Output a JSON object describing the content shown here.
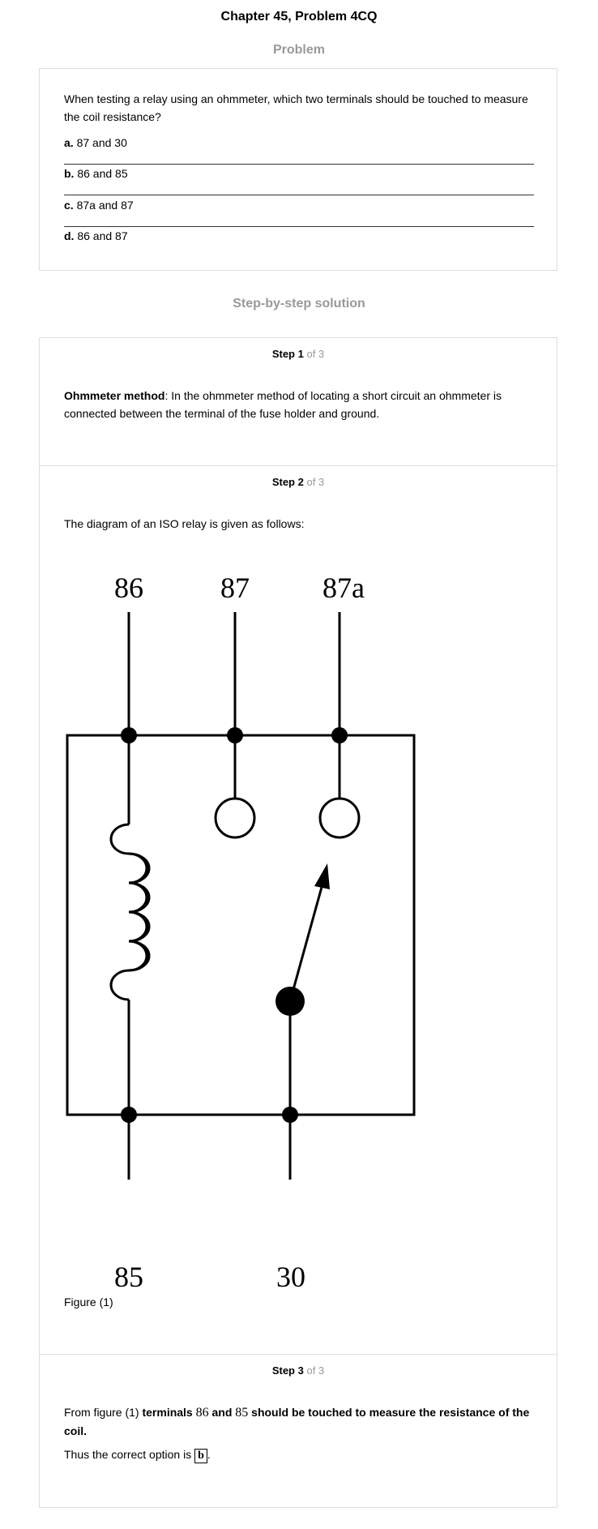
{
  "header": {
    "title": "Chapter 45, Problem 4CQ"
  },
  "problem": {
    "heading": "Problem",
    "question": "When testing a relay using an ohmmeter, which two terminals should be touched to measure the coil resistance?",
    "options": [
      {
        "letter": "a.",
        "text": "87 and 30"
      },
      {
        "letter": "b.",
        "text": "86 and 85"
      },
      {
        "letter": "c.",
        "text": "87a and 87"
      },
      {
        "letter": "d.",
        "text": "86 and 87"
      }
    ]
  },
  "solution": {
    "heading": "Step-by-step solution",
    "steps": [
      {
        "label": "Step 1",
        "of": "of 3",
        "term": "Ohmmeter method",
        "body": ": In the ohmmeter method of locating a short circuit an ohmmeter is connected between the terminal of the fuse holder and ground."
      },
      {
        "label": "Step 2",
        "of": "of 3",
        "intro": "The diagram of an ISO relay is given as follows:",
        "figure_caption": "Figure (1)",
        "diagram": {
          "top_terminals": [
            "86",
            "87",
            "87a"
          ],
          "bottom_terminals": [
            "85",
            "30"
          ]
        }
      },
      {
        "label": "Step 3",
        "of": "of 3",
        "line1_prefix": "From figure (1) ",
        "line1_bold_a": "terminals",
        "t1": "86",
        "and_word": "and",
        "t2": "85",
        "line1_bold_b": "should be touched to measure the resistance of the coil.",
        "line2_prefix": "Thus the correct option is",
        "answer": "b"
      }
    ]
  }
}
